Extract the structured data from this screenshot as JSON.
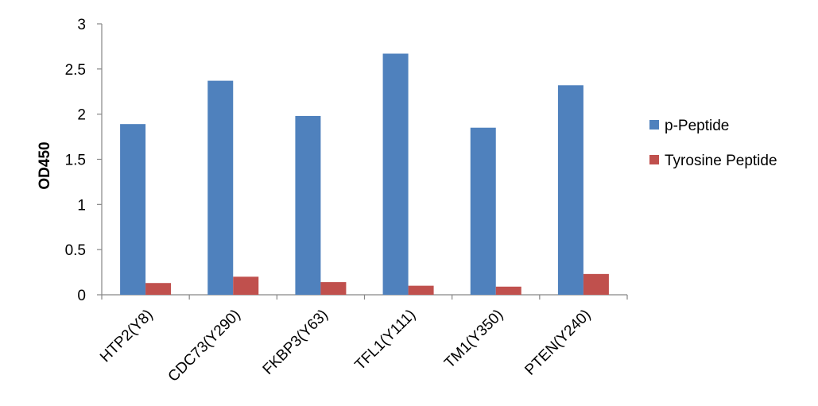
{
  "chart_data": {
    "type": "bar",
    "title": "",
    "xlabel": "",
    "ylabel": "OD450",
    "ylim": [
      0,
      3
    ],
    "yticks": [
      "0",
      "0.5",
      "1",
      "1.5",
      "2",
      "2.5",
      "3"
    ],
    "categories": [
      "HTP2(Y8)",
      "CDC73(Y290)",
      "FKBP3(Y63)",
      "TFL1(Y111)",
      "TM1(Y350)",
      "PTEN(Y240)"
    ],
    "series": [
      {
        "name": "p-Peptide",
        "color": "#4f81bd",
        "values": [
          1.89,
          2.37,
          1.98,
          2.67,
          1.85,
          2.32
        ]
      },
      {
        "name": "Tyrosine Peptide",
        "color": "#c0504d",
        "values": [
          0.13,
          0.2,
          0.14,
          0.1,
          0.09,
          0.23
        ]
      }
    ],
    "grid": false,
    "legend": "right"
  }
}
